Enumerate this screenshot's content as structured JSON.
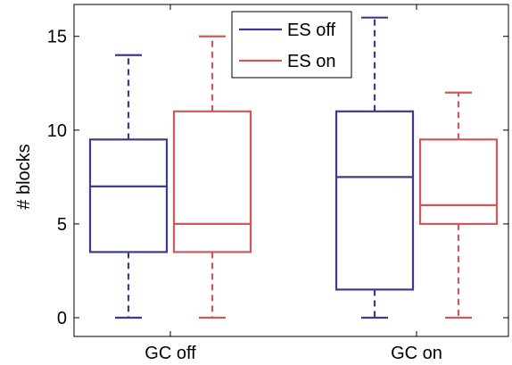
{
  "chart_data": {
    "type": "boxplot",
    "title": "",
    "xlabel": "",
    "ylabel": "# blocks",
    "ylim": [
      -1,
      16.7
    ],
    "yticks": [
      0,
      5,
      10,
      15
    ],
    "categories": [
      "GC off",
      "GC on"
    ],
    "grid": false,
    "legend_position": "top-center",
    "series": [
      {
        "name": "ES off",
        "color": "#3b3b8f",
        "boxes": [
          {
            "whisker_low": 0,
            "q1": 3.5,
            "median": 7,
            "q3": 9.5,
            "whisker_high": 14
          },
          {
            "whisker_low": 0,
            "q1": 1.5,
            "median": 7.5,
            "q3": 11,
            "whisker_high": 16
          }
        ]
      },
      {
        "name": "ES on",
        "color": "#d0585a",
        "boxes": [
          {
            "whisker_low": 0,
            "q1": 3.5,
            "median": 5,
            "q3": 11,
            "whisker_high": 15
          },
          {
            "whisker_low": 0,
            "q1": 5,
            "median": 6,
            "q3": 9.5,
            "whisker_high": 12
          }
        ]
      }
    ]
  }
}
